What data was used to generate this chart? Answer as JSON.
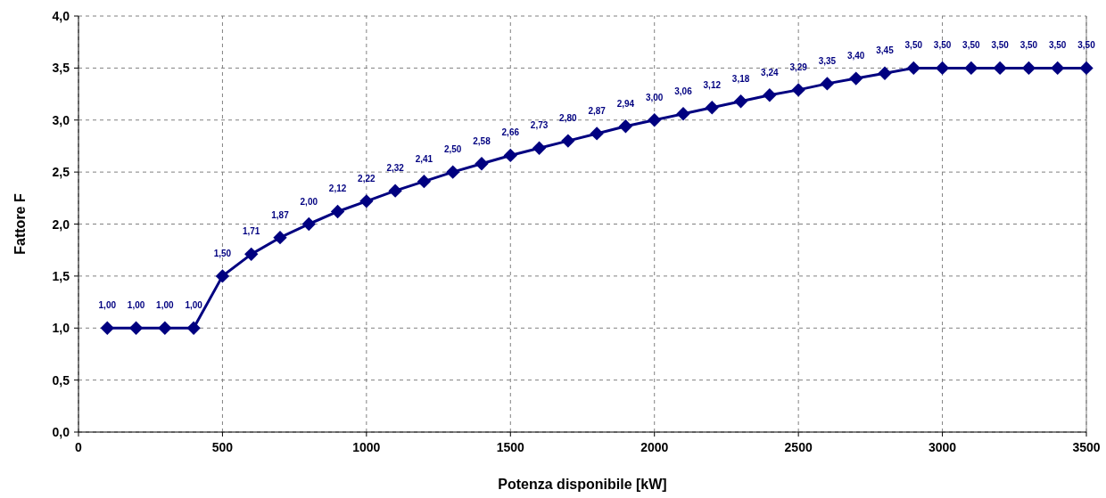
{
  "chart_data": {
    "type": "line",
    "xlabel": "Potenza disponibile [kW]",
    "ylabel": "Fattore F",
    "x": [
      100,
      200,
      300,
      400,
      500,
      600,
      700,
      800,
      900,
      1000,
      1100,
      1200,
      1300,
      1400,
      1500,
      1600,
      1700,
      1800,
      1900,
      2000,
      2100,
      2200,
      2300,
      2400,
      2500,
      2600,
      2700,
      2800,
      2900,
      3000,
      3100,
      3200,
      3300,
      3400,
      3500
    ],
    "series": [
      {
        "color": "#000080",
        "values": [
          1.0,
          1.0,
          1.0,
          1.0,
          1.5,
          1.71,
          1.87,
          2.0,
          2.12,
          2.22,
          2.32,
          2.41,
          2.5,
          2.58,
          2.66,
          2.73,
          2.8,
          2.87,
          2.94,
          3.0,
          3.06,
          3.12,
          3.18,
          3.24,
          3.29,
          3.35,
          3.4,
          3.45,
          3.5,
          3.5,
          3.5,
          3.5,
          3.5,
          3.5,
          3.5
        ],
        "value_labels": [
          "1,00",
          "1,00",
          "1,00",
          "1,00",
          "1,50",
          "1,71",
          "1,87",
          "2,00",
          "2,12",
          "2,22",
          "2,32",
          "2,41",
          "2,50",
          "2,58",
          "2,66",
          "2,73",
          "2,80",
          "2,87",
          "2,94",
          "3,00",
          "3,06",
          "3,12",
          "3,18",
          "3,24",
          "3,29",
          "3,35",
          "3,40",
          "3,45",
          "3,50",
          "3,50",
          "3,50",
          "3,50",
          "3,50",
          "3,50",
          "3,50"
        ]
      }
    ],
    "xlim": [
      0,
      3500
    ],
    "xticks": [
      0,
      500,
      1000,
      1500,
      2000,
      2500,
      3000,
      3500
    ],
    "ylim": [
      0,
      4
    ],
    "yticks": [
      {
        "value": 0,
        "label": "0,0"
      },
      {
        "value": 0.5,
        "label": "0,5"
      },
      {
        "value": 1,
        "label": "1,0"
      },
      {
        "value": 1.5,
        "label": "1,5"
      },
      {
        "value": 2,
        "label": "2,0"
      },
      {
        "value": 2.5,
        "label": "2,5"
      },
      {
        "value": 3,
        "label": "3,0"
      },
      {
        "value": 3.5,
        "label": "3,5"
      },
      {
        "value": 4,
        "label": "4,0"
      }
    ],
    "grid": true,
    "marker": "diamond",
    "line_style": "solid"
  }
}
